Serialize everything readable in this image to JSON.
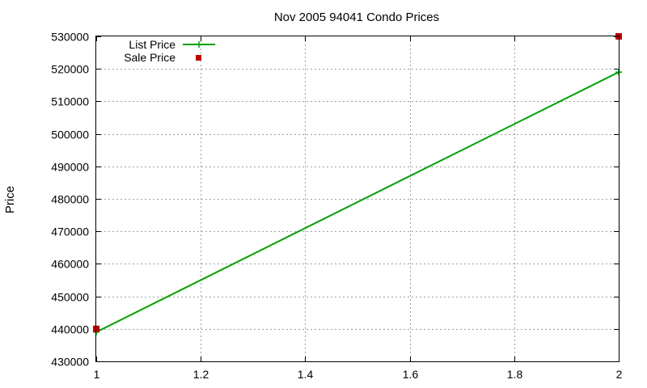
{
  "chart_data": {
    "type": "line",
    "title": "Nov 2005 94041 Condo Prices",
    "xlabel": "",
    "ylabel": "Price",
    "xlim": [
      1,
      2
    ],
    "ylim": [
      430000,
      530000
    ],
    "grid": true,
    "legend_position": "top-left",
    "x_ticks": [
      "1",
      "1.2",
      "1.4",
      "1.6",
      "1.8",
      "2"
    ],
    "x_tick_values": [
      1,
      1.2,
      1.4,
      1.6,
      1.8,
      2
    ],
    "y_ticks": [
      "430000",
      "440000",
      "450000",
      "460000",
      "470000",
      "480000",
      "490000",
      "500000",
      "510000",
      "520000",
      "530000"
    ],
    "y_tick_values": [
      430000,
      440000,
      450000,
      460000,
      470000,
      480000,
      490000,
      500000,
      510000,
      520000,
      530000
    ],
    "series": [
      {
        "name": "List Price",
        "style": "line",
        "color": "#00a000",
        "x": [
          1,
          2
        ],
        "y": [
          439000,
          519000
        ]
      },
      {
        "name": "Sale Price",
        "style": "points",
        "color": "#c00000",
        "x": [
          1,
          2
        ],
        "y": [
          440000,
          530000
        ]
      }
    ]
  }
}
